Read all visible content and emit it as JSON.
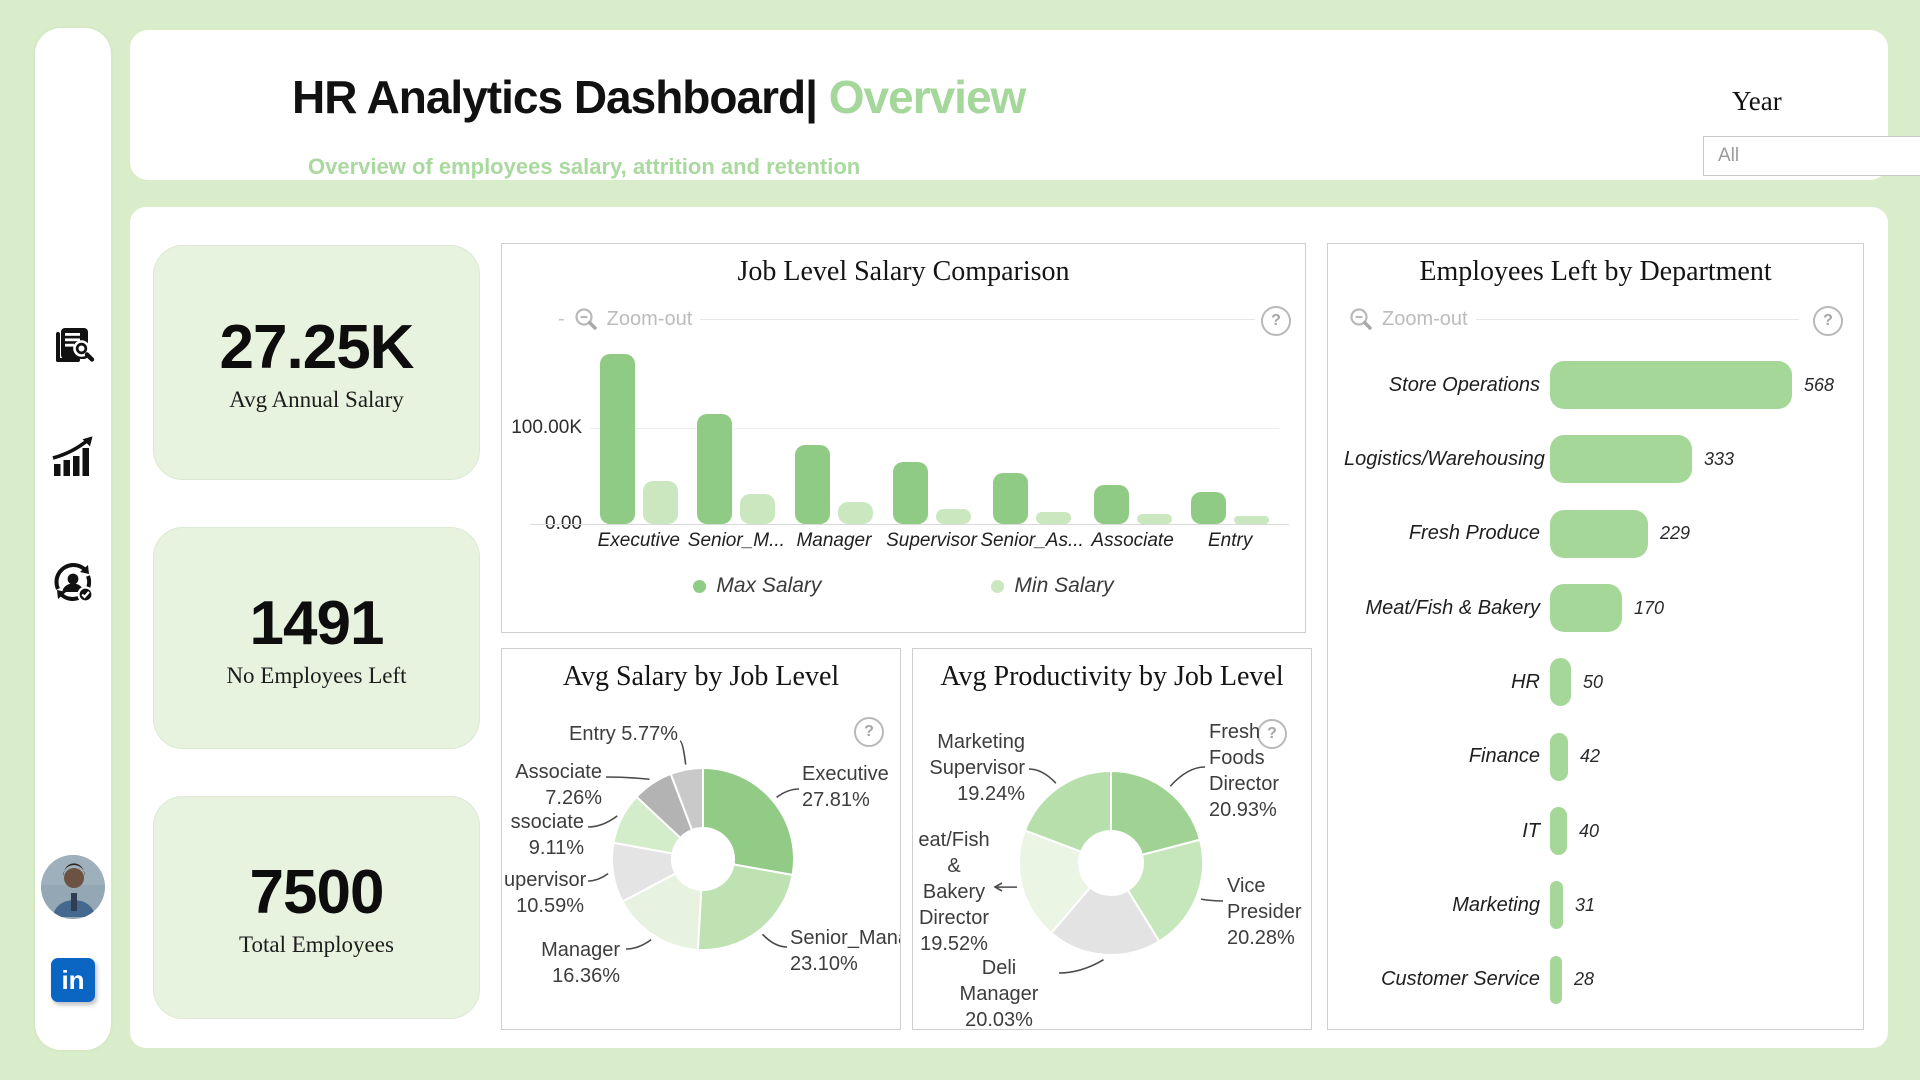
{
  "header": {
    "title_black": "HR Analytics Dashboard|",
    "title_green": " Overview",
    "subtitle": "Overview of employees salary, attrition and retention",
    "year_label": "Year",
    "year_value": "All"
  },
  "sidebar": {
    "icons": [
      "report-search-icon",
      "growth-chart-icon",
      "employee-retention-icon"
    ],
    "linkedin_label": "in"
  },
  "kpis": [
    {
      "value": "27.25K",
      "label": "Avg Annual Salary"
    },
    {
      "value": "1491",
      "label": "No Employees Left"
    },
    {
      "value": "7500",
      "label": "Total Employees"
    }
  ],
  "colors": {
    "accent_green": "#a4d79a",
    "max_bar": "#90cb85",
    "min_bar": "#cbe7c0",
    "dept_bar": "#a5d798",
    "page_bg": "#d9edca",
    "kpi_bg": "#e7f3df",
    "linkedin_blue": "#0a66c2"
  },
  "chart_data": [
    {
      "type": "bar",
      "title": "Job Level Salary Comparison",
      "categories": [
        "Executive",
        "Senior_M...",
        "Manager",
        "Supervisor",
        "Senior_As...",
        "Associate",
        "Entry"
      ],
      "series": [
        {
          "name": "Max Salary",
          "color": "#90cb85",
          "values": [
            177000,
            115000,
            82000,
            65000,
            53000,
            41000,
            33000
          ]
        },
        {
          "name": "Min Salary",
          "color": "#cbe7c0",
          "values": [
            45000,
            31000,
            23000,
            16000,
            13000,
            10000,
            8000
          ]
        }
      ],
      "y_ticks": [
        {
          "label": "100.00K",
          "value": 100000
        },
        {
          "label": "0.00",
          "value": 0
        }
      ],
      "ylim": [
        0,
        190000
      ],
      "legend_position": "bottom",
      "toolbar": {
        "dash": "-",
        "zoom_out": "Zoom-out",
        "help": "?"
      }
    },
    {
      "type": "pie",
      "title": "Avg Salary by Job Level",
      "help": "?",
      "slices": [
        {
          "label_lines": [
            "Executive",
            "27.81%"
          ],
          "value": 27.81,
          "color": "#92cb86"
        },
        {
          "label_lines": [
            "Senior_Mana",
            "23.10%"
          ],
          "value": 23.1,
          "color": "#bfe2b3"
        },
        {
          "label_lines": [
            "Manager",
            "16.36%"
          ],
          "value": 16.36,
          "color": "#e7f3e0"
        },
        {
          "label_lines": [
            "upervisor",
            "10.59%"
          ],
          "value": 10.59,
          "color": "#e4e4e4"
        },
        {
          "label_lines": [
            "ssociate",
            "9.11%"
          ],
          "value": 9.11,
          "color": "#d3ecca"
        },
        {
          "label_lines": [
            "Associate",
            "7.26%"
          ],
          "value": 7.26,
          "color": "#b3b3b3"
        },
        {
          "label_lines": [
            "Entry 5.77%"
          ],
          "value": 5.77,
          "color": "#c9c9c9"
        }
      ]
    },
    {
      "type": "pie",
      "title": "Avg Productivity by Job Level",
      "help": "?",
      "slices": [
        {
          "label_lines": [
            "Fresh",
            "Foods",
            "Director",
            "20.93%"
          ],
          "value": 20.93,
          "color": "#a0d293"
        },
        {
          "label_lines": [
            "Vice",
            "Presider",
            "20.28%"
          ],
          "value": 20.28,
          "color": "#c6e6bb"
        },
        {
          "label_lines": [
            "Deli Manager",
            "20.03%"
          ],
          "value": 20.03,
          "color": "#e3e3e3"
        },
        {
          "label_lines": [
            "eat/Fish",
            "&",
            "Bakery",
            "Director",
            "19.52%"
          ],
          "value": 19.52,
          "color": "#eaf5e4"
        },
        {
          "label_lines": [
            "Marketing",
            "Supervisor",
            "19.24%"
          ],
          "value": 19.24,
          "color": "#b6dfab"
        }
      ]
    },
    {
      "type": "bar-horizontal",
      "title": "Employees Left by Department",
      "categories": [
        "Store Operations",
        "Logistics/Warehousing",
        "Fresh Produce",
        "Meat/Fish & Bakery",
        "HR",
        "Finance",
        "IT",
        "Marketing",
        "Customer Service"
      ],
      "values": [
        568,
        333,
        229,
        170,
        50,
        42,
        40,
        31,
        28
      ],
      "color": "#a5d798",
      "xlim": [
        0,
        600
      ],
      "toolbar": {
        "zoom_out": "Zoom-out",
        "help": "?"
      }
    }
  ]
}
